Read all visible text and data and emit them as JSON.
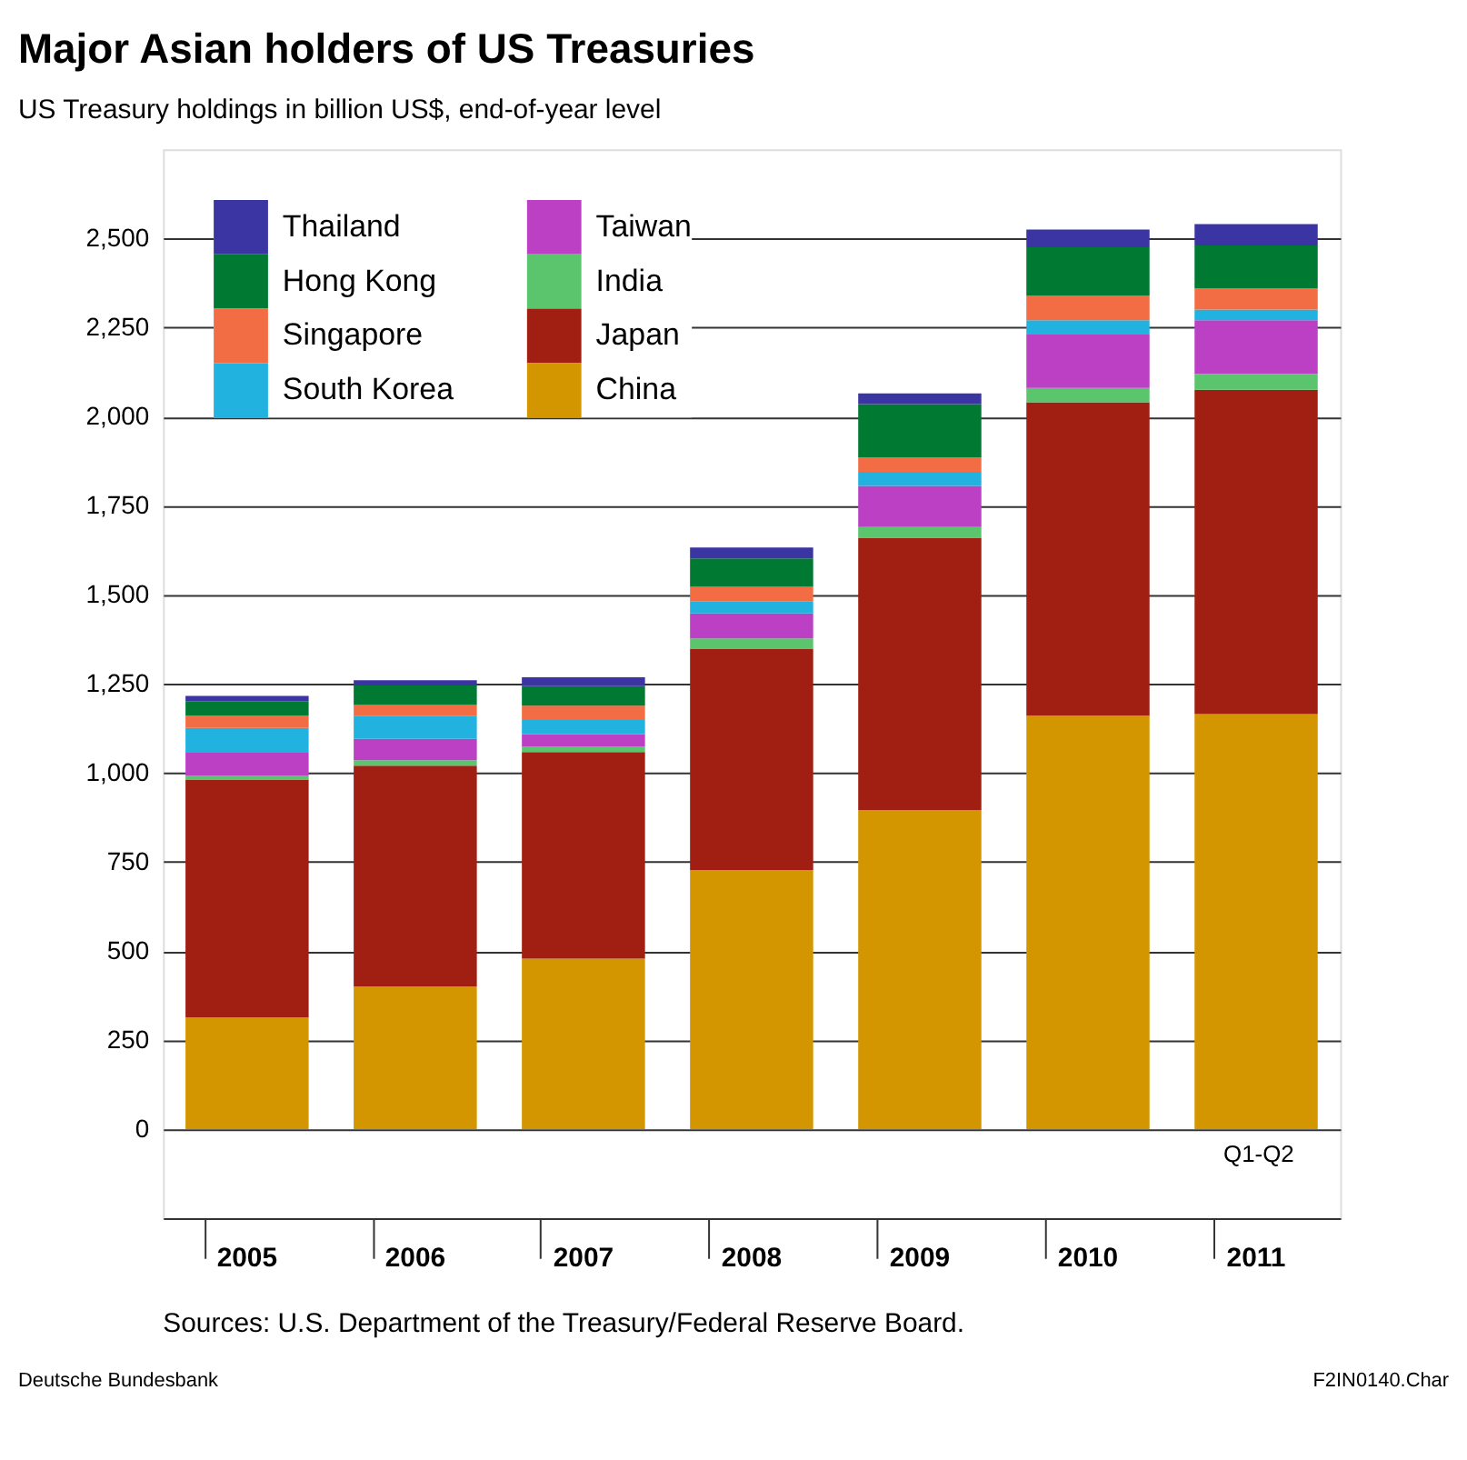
{
  "chart_data": {
    "type": "bar",
    "stacked": true,
    "title": "Major Asian holders of US Treasuries",
    "subtitle": "US Treasury holdings in billion US$, end-of-year level",
    "categories": [
      "2005",
      "2006",
      "2007",
      "2008",
      "2009",
      "2010",
      "2011"
    ],
    "series": [
      {
        "name": "China",
        "color": "#d39600",
        "values": [
          313,
          400,
          478,
          727,
          895,
          1160,
          1165
        ]
      },
      {
        "name": "Japan",
        "color": "#a11f12",
        "values": [
          668,
          620,
          580,
          620,
          765,
          880,
          910
        ]
      },
      {
        "name": "India",
        "color": "#5bc56e",
        "values": [
          10,
          15,
          15,
          30,
          30,
          40,
          45
        ]
      },
      {
        "name": "Taiwan",
        "color": "#bb40c4",
        "values": [
          65,
          60,
          35,
          70,
          115,
          150,
          150
        ]
      },
      {
        "name": "South Korea",
        "color": "#22b2e0",
        "values": [
          70,
          65,
          40,
          35,
          40,
          40,
          30
        ]
      },
      {
        "name": "Singapore",
        "color": "#f26d44",
        "values": [
          35,
          30,
          40,
          40,
          40,
          70,
          60
        ]
      },
      {
        "name": "Hong Kong",
        "color": "#007a33",
        "values": [
          40,
          55,
          55,
          80,
          150,
          135,
          120
        ]
      },
      {
        "name": "Thailand",
        "color": "#3b35a3",
        "values": [
          15,
          15,
          25,
          30,
          30,
          50,
          60
        ]
      }
    ],
    "ylim": [
      -250,
      2750
    ],
    "yticks": [
      {
        "value": 0,
        "label": "0"
      },
      {
        "value": 250,
        "label": "250"
      },
      {
        "value": 500,
        "label": "500"
      },
      {
        "value": 750,
        "label": "750"
      },
      {
        "value": 1000,
        "label": "1,000"
      },
      {
        "value": 1250,
        "label": "1,250"
      },
      {
        "value": 1500,
        "label": "1,500"
      },
      {
        "value": 1750,
        "label": "1,750"
      },
      {
        "value": 2000,
        "label": "2,000"
      },
      {
        "value": 2250,
        "label": "2,250"
      },
      {
        "value": 2500,
        "label": "2,500"
      }
    ],
    "grid": "y",
    "legend": "top left",
    "annotations": [
      "Q1-Q2",
      "Sources: U.S. Department of the Treasury/Federal Reserve Board.",
      "Deutsche Bundesbank",
      "F2IN0140.Char"
    ]
  }
}
